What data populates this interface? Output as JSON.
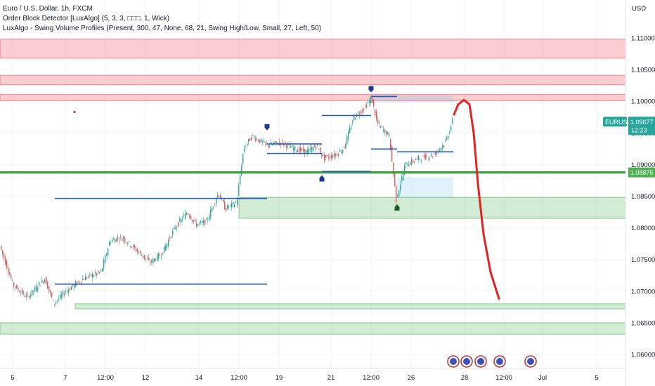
{
  "legend": {
    "line1": "Euro / U.S. Dollar, 1h, FXCM",
    "line2": "Order Block Detector [LuxAlgo] (5, 3, 3, □□□, 1, Wick)",
    "line3": "LuxAlgo - Swing Volume Profiles (Present, 300, 47, None, 68, 21, Swing High/Low, Small, 27, Left, 50)"
  },
  "currency": "USD",
  "symbol_badge": {
    "symbol": "EURUSD",
    "price": "1.09677",
    "countdown": "12:23",
    "color": "#26a69a"
  },
  "level_badge": {
    "price": "1.08875",
    "color": "#4caf50"
  },
  "chart_data": {
    "type": "candlestick",
    "title": "Euro / U.S. Dollar, 1h, FXCM",
    "ylim": [
      1.0575,
      1.1175
    ],
    "y_ticks": [
      "1.06000",
      "1.06500",
      "1.07000",
      "1.07500",
      "1.08000",
      "1.08500",
      "1.09000",
      "1.09500",
      "1.10000",
      "1.10500",
      "1.11000"
    ],
    "x_ticks": [
      "5",
      "7",
      "12:00",
      "12",
      "14",
      "12:00",
      "19",
      "21",
      "12:00",
      "26",
      "28",
      "12:00",
      "Jul",
      "5"
    ],
    "price_path": [
      [
        0,
        1.0775
      ],
      [
        20,
        1.071
      ],
      [
        40,
        1.069
      ],
      [
        65,
        1.072
      ],
      [
        78,
        1.068
      ],
      [
        95,
        1.07
      ],
      [
        120,
        1.072
      ],
      [
        145,
        1.073
      ],
      [
        158,
        1.078
      ],
      [
        175,
        1.0785
      ],
      [
        200,
        1.076
      ],
      [
        215,
        1.0745
      ],
      [
        232,
        1.076
      ],
      [
        250,
        1.08
      ],
      [
        268,
        1.0825
      ],
      [
        280,
        1.0805
      ],
      [
        295,
        1.081
      ],
      [
        312,
        1.0855
      ],
      [
        322,
        1.083
      ],
      [
        338,
        1.084
      ],
      [
        348,
        1.0925
      ],
      [
        360,
        1.0945
      ],
      [
        382,
        1.093
      ],
      [
        400,
        1.0935
      ],
      [
        420,
        1.0925
      ],
      [
        438,
        1.092
      ],
      [
        452,
        1.093
      ],
      [
        462,
        1.091
      ],
      [
        478,
        1.0915
      ],
      [
        490,
        1.0925
      ],
      [
        505,
        1.0975
      ],
      [
        520,
        1.099
      ],
      [
        530,
        1.1005
      ],
      [
        538,
        1.0965
      ],
      [
        555,
        1.0945
      ],
      [
        565,
        1.0845
      ],
      [
        578,
        1.09
      ],
      [
        598,
        1.091
      ],
      [
        618,
        1.0915
      ],
      [
        635,
        1.0935
      ],
      [
        645,
        1.0968
      ]
    ],
    "supply_zones": [
      [
        1.1068,
        1.1098
      ],
      [
        1.1026,
        1.1041
      ],
      [
        1.1001,
        1.1011
      ]
    ],
    "demand_zones": [
      [
        1.0815,
        1.0848
      ],
      [
        1.0672,
        1.068
      ],
      [
        1.0632,
        1.065
      ]
    ],
    "horizontal_level": 1.08875,
    "profile_levels": [
      {
        "from": 78,
        "to": 380,
        "y": 1.08465
      },
      {
        "from": 78,
        "to": 380,
        "y": 1.0711
      },
      {
        "from": 380,
        "to": 458,
        "y": 1.09325
      },
      {
        "from": 380,
        "to": 458,
        "y": 1.09175
      },
      {
        "from": 458,
        "to": 528,
        "y": 1.0889
      },
      {
        "from": 458,
        "to": 528,
        "y": 1.09775
      },
      {
        "from": 528,
        "to": 565,
        "y": 1.10075
      },
      {
        "from": 528,
        "to": 565,
        "y": 1.09245
      },
      {
        "from": 565,
        "to": 645,
        "y": 1.092
      }
    ],
    "highlight_boxes": [
      {
        "x0": 528,
        "x1": 645,
        "y0": 1.0998,
        "y1": 1.101
      },
      {
        "x0": 565,
        "x1": 645,
        "y0": 1.08475,
        "y1": 1.088
      }
    ],
    "swing_markers": [
      {
        "x": 380,
        "y": 1.0955,
        "type": "high",
        "color": "#1e3a8a"
      },
      {
        "x": 528,
        "y": 1.1015,
        "type": "high",
        "color": "#1e3a8a"
      },
      {
        "x": 458,
        "y": 1.0882,
        "type": "low",
        "color": "#1e3a8a"
      },
      {
        "x": 565,
        "y": 1.0836,
        "type": "low",
        "color": "#1b5e20"
      }
    ],
    "red_dot": {
      "x": 106,
      "y": 1.0983
    },
    "drawing_path": [
      [
        646,
        1.0979
      ],
      [
        652,
        1.0995
      ],
      [
        660,
        1.1002
      ],
      [
        668,
        1.0995
      ],
      [
        674,
        1.095
      ],
      [
        680,
        1.087
      ],
      [
        688,
        1.079
      ],
      [
        698,
        1.073
      ],
      [
        710,
        1.0688
      ]
    ],
    "event_icons_x": [
      645,
      664,
      684,
      711,
      755
    ]
  }
}
